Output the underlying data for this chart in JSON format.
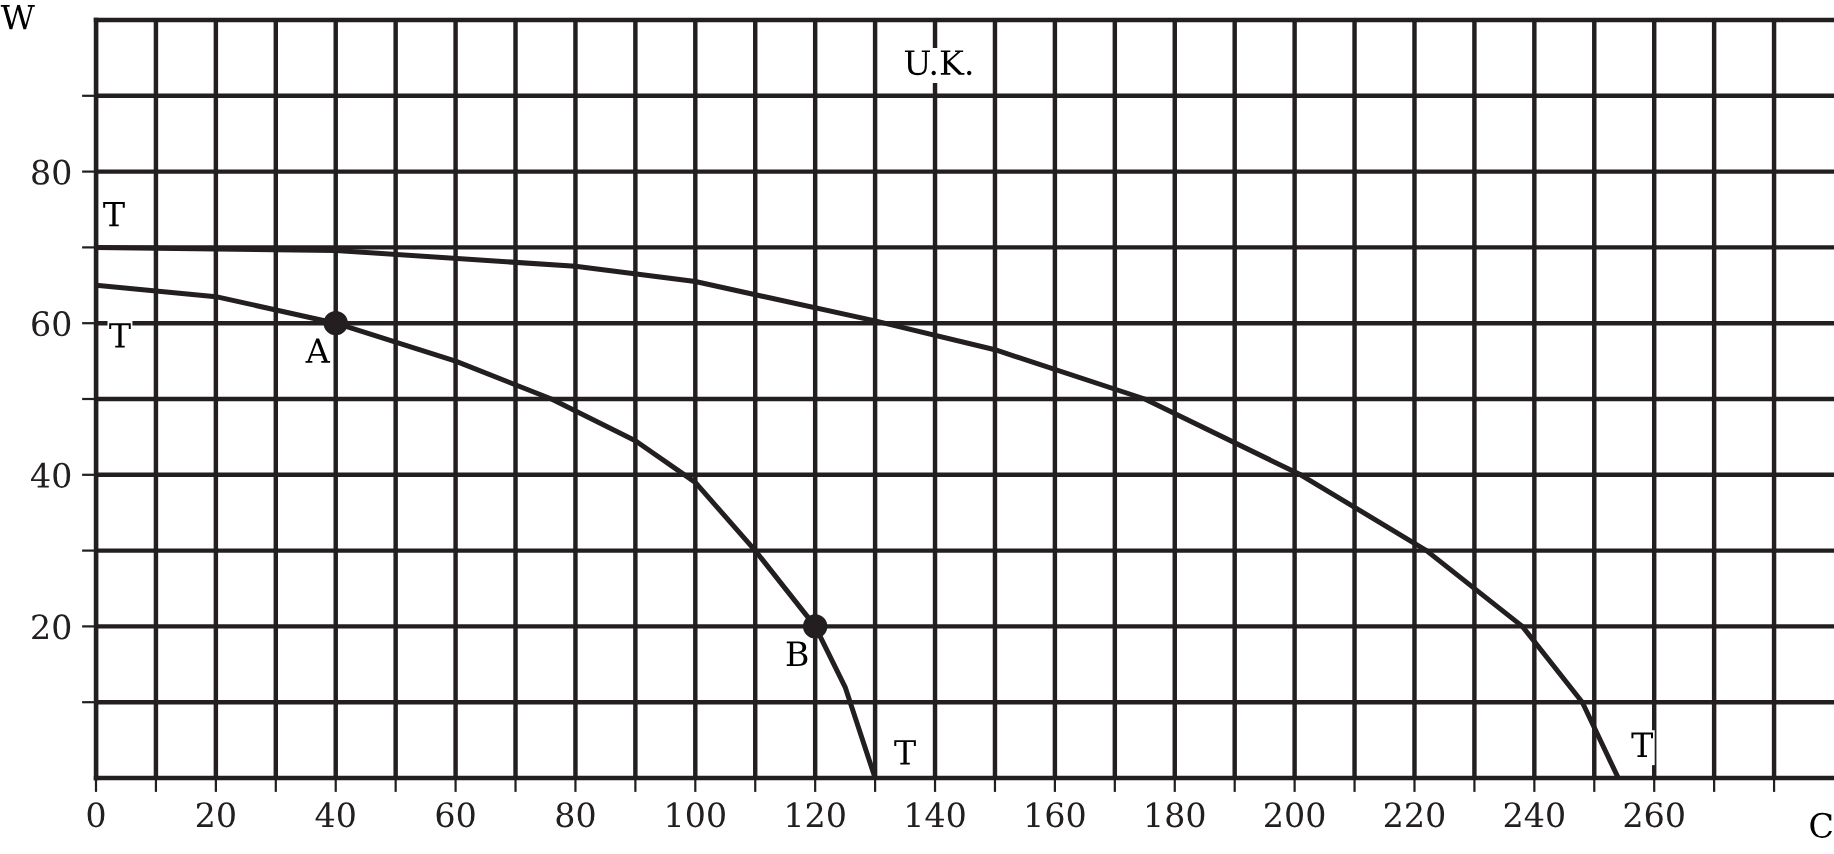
{
  "chart_data": {
    "type": "line",
    "xlabel": "C",
    "ylabel": "W",
    "series": [
      {
        "color": "#231f20",
        "x": [
          0,
          40,
          80,
          100,
          130,
          150,
          175,
          201,
          222,
          238,
          248,
          254
        ],
        "values": [
          70,
          69.6,
          67.5,
          65.5,
          60.3,
          56.5,
          50,
          40,
          30,
          20,
          10,
          0
        ]
      },
      {
        "color": "#231f20",
        "x": [
          0,
          20,
          40,
          60,
          76,
          90,
          100,
          110,
          120,
          125,
          130
        ],
        "values": [
          65,
          63.5,
          60,
          55,
          50,
          44.5,
          39,
          30,
          20,
          12,
          0
        ]
      },
      {
        "type": "scatter",
        "color": "#231f20",
        "marker": "circle",
        "x": [
          40,
          120
        ],
        "values": [
          60,
          20
        ]
      }
    ],
    "annotations": [
      {
        "text": "T",
        "x": 3,
        "y": 74
      },
      {
        "text": "T",
        "x": 4,
        "y": 58
      },
      {
        "text": "A",
        "x": 37,
        "y": 56
      },
      {
        "text": "B",
        "x": 117,
        "y": 16
      },
      {
        "text": "T",
        "x": 135,
        "y": 3
      },
      {
        "text": "T",
        "x": 258,
        "y": 4
      },
      "U.K."
    ],
    "xlim": [
      0,
      290
    ],
    "ylim": [
      0,
      100
    ],
    "xticks": [
      0,
      {
        "value": 10,
        "label": null
      },
      20,
      {
        "value": 30,
        "label": null
      },
      40,
      {
        "value": 50,
        "label": null
      },
      60,
      {
        "value": 70,
        "label": null
      },
      80,
      {
        "value": 90,
        "label": null
      },
      100,
      {
        "value": 110,
        "label": null
      },
      120,
      {
        "value": 130,
        "label": null
      },
      140,
      {
        "value": 150,
        "label": null
      },
      160,
      {
        "value": 170,
        "label": null
      },
      180,
      {
        "value": 190,
        "label": null
      },
      200,
      {
        "value": 210,
        "label": null
      },
      220,
      {
        "value": 230,
        "label": null
      },
      240,
      {
        "value": 250,
        "label": null
      },
      260,
      {
        "value": 270,
        "label": null
      },
      {
        "value": 280,
        "label": null
      }
    ],
    "yticks": [
      {
        "value": 10,
        "label": null
      },
      20,
      {
        "value": 30,
        "label": null
      },
      40,
      {
        "value": 50,
        "label": null
      },
      60,
      {
        "value": 70,
        "label": null
      },
      80,
      {
        "value": 90,
        "label": null
      }
    ],
    "grid": true,
    "marker": "none",
    "line_style": "solid",
    "legend": false
  }
}
